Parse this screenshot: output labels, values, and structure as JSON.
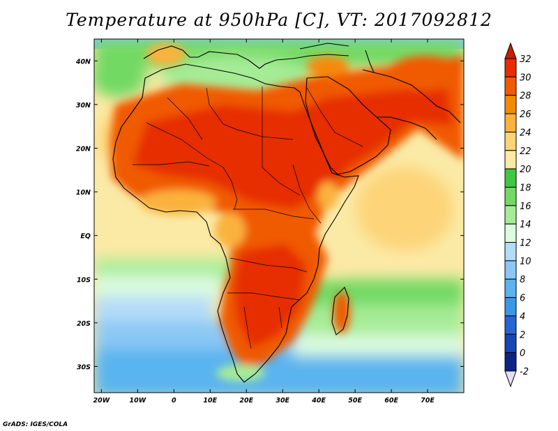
{
  "title": "Temperature at 950hPa [C], VT: 2017092812",
  "credit": "GrADS: IGES/COLA",
  "map": {
    "lon_range": [
      -22,
      80
    ],
    "lat_range": [
      -36,
      45
    ],
    "lon_ticks": [
      {
        "lon": -20,
        "label": "20W"
      },
      {
        "lon": -10,
        "label": "10W"
      },
      {
        "lon": 0,
        "label": "0"
      },
      {
        "lon": 10,
        "label": "10E"
      },
      {
        "lon": 20,
        "label": "20E"
      },
      {
        "lon": 30,
        "label": "30E"
      },
      {
        "lon": 40,
        "label": "40E"
      },
      {
        "lon": 50,
        "label": "50E"
      },
      {
        "lon": 60,
        "label": "60E"
      },
      {
        "lon": 70,
        "label": "70E"
      }
    ],
    "lat_ticks": [
      {
        "lat": 40,
        "label": "40N"
      },
      {
        "lat": 30,
        "label": "30N"
      },
      {
        "lat": 20,
        "label": "20N"
      },
      {
        "lat": 10,
        "label": "10N"
      },
      {
        "lat": 0,
        "label": "EQ"
      },
      {
        "lat": -10,
        "label": "10S"
      },
      {
        "lat": -20,
        "label": "20S"
      },
      {
        "lat": -30,
        "label": "30S"
      }
    ]
  },
  "colorbar": {
    "levels": [
      "32",
      "30",
      "28",
      "26",
      "24",
      "22",
      "20",
      "18",
      "16",
      "14",
      "12",
      "10",
      "8",
      "6",
      "4",
      "2",
      "0",
      "-2"
    ],
    "colors": [
      "#e62e00",
      "#f05a00",
      "#f58a0a",
      "#fab23c",
      "#fdd478",
      "#fbeaa6",
      "#42c542",
      "#72d963",
      "#a6ec96",
      "#dcfbe0",
      "#b4dcf8",
      "#8cc8f5",
      "#5ab4ef",
      "#3c96e6",
      "#2864d2",
      "#1446b4",
      "#0c2484"
    ],
    "top_color": "#c81e00",
    "bottom_color": "#e6dcfa"
  }
}
